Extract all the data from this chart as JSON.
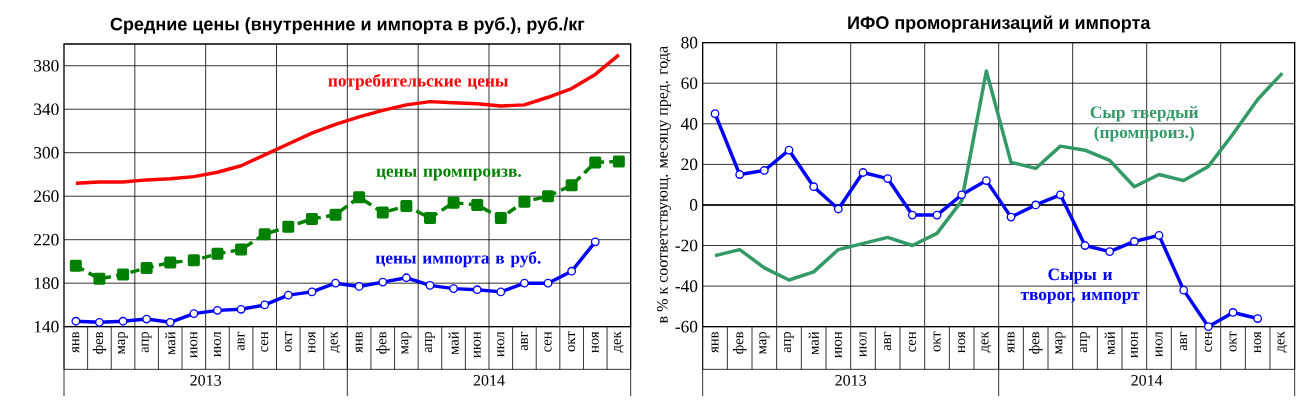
{
  "chart_data": [
    {
      "type": "line",
      "title": "Средние цены (внутренние и импорта в руб.), руб./кг",
      "categories": [
        "янв",
        "фев",
        "мар",
        "апр",
        "май",
        "июн",
        "июл",
        "авг",
        "сен",
        "окт",
        "ноя",
        "дек",
        "янв",
        "фев",
        "мар",
        "апр",
        "май",
        "июн",
        "июл",
        "авг",
        "сен",
        "окт",
        "ноя",
        "дек"
      ],
      "series": [
        {
          "name": "потребительские цены",
          "color": "#ff0000",
          "marker": "none",
          "values": [
            272,
            273,
            273,
            275,
            276,
            278,
            282,
            288,
            298,
            308,
            318,
            326,
            333,
            339,
            344,
            347,
            346,
            345,
            343,
            344,
            351,
            359,
            372,
            390
          ]
        },
        {
          "name": "цены промпроизв.",
          "color": "#008000",
          "marker": "square",
          "line_style": "dashed",
          "values": [
            196,
            184,
            188,
            194,
            199,
            201,
            207,
            211,
            225,
            232,
            239,
            243,
            259,
            245,
            251,
            240,
            254,
            252,
            240,
            255,
            260,
            270,
            291,
            292
          ]
        },
        {
          "name": "цены импорта в руб.",
          "color": "#0000ff",
          "marker": "circle",
          "values": [
            145,
            144,
            145,
            147,
            144,
            152,
            155,
            156,
            160,
            169,
            172,
            180,
            177,
            181,
            185,
            178,
            175,
            174,
            172,
            180,
            180,
            191,
            218,
            null
          ]
        }
      ],
      "ylim": [
        140,
        400
      ],
      "yticks": [
        140,
        180,
        220,
        260,
        300,
        340,
        380
      ],
      "grid": true,
      "annotations": [
        "2013",
        "2014"
      ]
    },
    {
      "type": "line",
      "title": "ИФО проморганизаций и импорта",
      "ylabel": "в % к соответствующ. месяцу пред. года",
      "categories": [
        "янв",
        "фев",
        "мар",
        "апр",
        "май",
        "июн",
        "июл",
        "авг",
        "сен",
        "окт",
        "ноя",
        "дек",
        "янв",
        "фев",
        "мар",
        "апр",
        "май",
        "июн",
        "июл",
        "авг",
        "сен",
        "окт",
        "ноя",
        "дек"
      ],
      "series": [
        {
          "name": "Сыры и творог, импорт",
          "color": "#0000ff",
          "marker": "circle",
          "values": [
            45,
            15,
            17,
            27,
            9,
            -2,
            16,
            13,
            -5,
            -5,
            5,
            12,
            -6,
            0,
            5,
            -20,
            -23,
            -18,
            -15,
            -42,
            -60,
            -53,
            -56,
            null
          ]
        },
        {
          "name": "Сыр твердый (промпроиз.)",
          "color": "#339966",
          "marker": "none",
          "values": [
            -25,
            -22,
            -31,
            -37,
            -33,
            -22,
            -19,
            -16,
            -20,
            -14,
            2,
            66,
            21,
            18,
            29,
            27,
            22,
            9,
            15,
            12,
            19,
            35,
            52,
            65
          ]
        }
      ],
      "ylim": [
        -60,
        80
      ],
      "yticks": [
        -60,
        -40,
        -20,
        0,
        20,
        40,
        60,
        80
      ],
      "grid": true,
      "annotations": [
        "2013",
        "2014"
      ]
    }
  ]
}
